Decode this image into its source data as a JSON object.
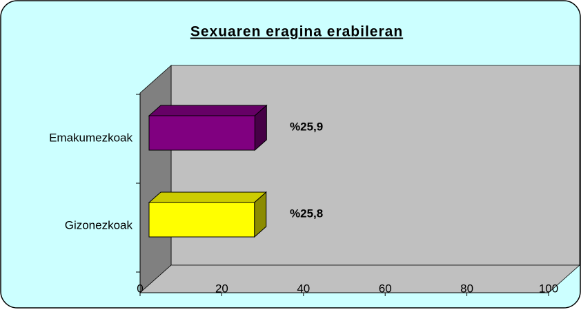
{
  "chart_data": {
    "type": "bar3d",
    "orientation": "horizontal",
    "title": "Sexuaren eragina erabileran",
    "categories": [
      "Emakumezkoak",
      "Gizonezkoak"
    ],
    "values": [
      25.9,
      25.8
    ],
    "value_labels": [
      "%25,9",
      "%25,8"
    ],
    "colors": [
      "#800080",
      "#ffff00"
    ],
    "xlim": [
      0,
      100
    ],
    "xticks": [
      0,
      20,
      40,
      60,
      80,
      100
    ]
  }
}
